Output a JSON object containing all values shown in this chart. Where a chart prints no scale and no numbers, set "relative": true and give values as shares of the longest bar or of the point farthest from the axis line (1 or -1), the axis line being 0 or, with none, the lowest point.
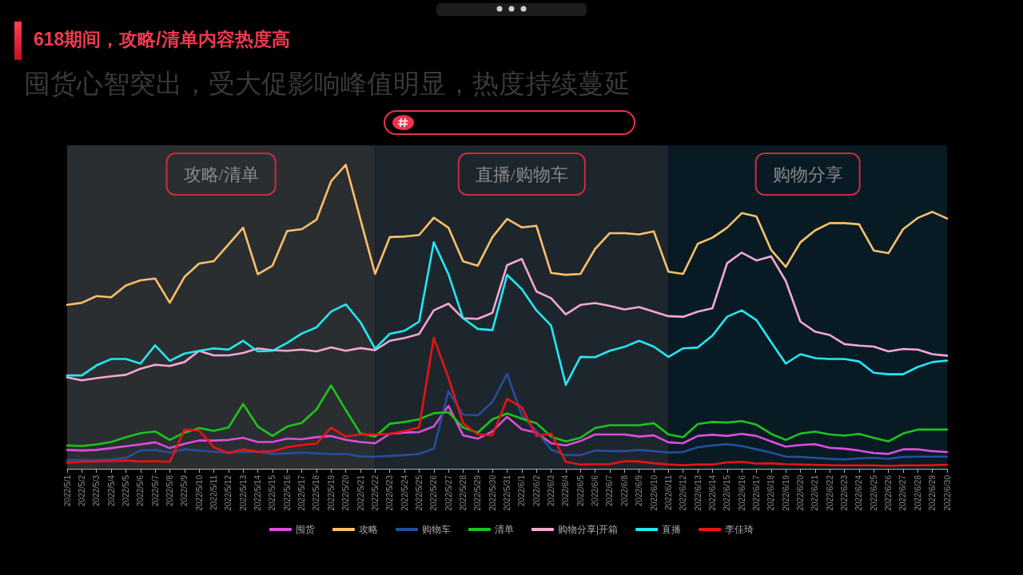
{
  "chart_data": {
    "type": "line",
    "title": "618期间，攻略/清单内容热度高",
    "subtitle": "囤货心智突出，受大促影响峰值明显，热度持续蔓延",
    "relative": true,
    "categories": [
      "2022/5/1",
      "2022/5/2",
      "2022/5/3",
      "2022/5/4",
      "2022/5/5",
      "2022/5/6",
      "2022/5/7",
      "2022/5/8",
      "2022/5/9",
      "2022/5/10",
      "2022/5/11",
      "2022/5/12",
      "2022/5/13",
      "2022/5/14",
      "2022/5/15",
      "2022/5/16",
      "2022/5/17",
      "2022/5/18",
      "2022/5/19",
      "2022/5/20",
      "2022/5/21",
      "2022/5/22",
      "2022/5/23",
      "2022/5/24",
      "2022/5/25",
      "2022/5/26",
      "2022/5/27",
      "2022/5/28",
      "2022/5/29",
      "2022/5/30",
      "2022/5/31",
      "2022/6/1",
      "2022/6/2",
      "2022/6/3",
      "2022/6/4",
      "2022/6/5",
      "2022/6/6",
      "2022/6/7",
      "2022/6/8",
      "2022/6/9",
      "2022/6/10",
      "2022/6/11",
      "2022/6/12",
      "2022/6/13",
      "2022/6/14",
      "2022/6/15",
      "2022/6/16",
      "2022/6/17",
      "2022/6/18",
      "2022/6/19",
      "2022/6/20",
      "2022/6/21",
      "2022/6/22",
      "2022/6/23",
      "2022/6/24",
      "2022/6/25",
      "2022/6/26",
      "2022/6/27",
      "2022/6/28",
      "2022/6/29",
      "2022/6/30"
    ],
    "series": [
      {
        "name": "囤货",
        "color": "#dc4edc",
        "values": [
          0.062,
          0.06,
          0.062,
          0.068,
          0.074,
          0.08,
          0.087,
          0.068,
          0.082,
          0.093,
          0.093,
          0.095,
          0.102,
          0.088,
          0.088,
          0.099,
          0.097,
          0.104,
          0.108,
          0.095,
          0.088,
          0.084,
          0.115,
          0.119,
          0.121,
          0.139,
          0.207,
          0.11,
          0.099,
          0.123,
          0.171,
          0.13,
          0.119,
          0.084,
          0.077,
          0.091,
          0.113,
          0.113,
          0.113,
          0.106,
          0.11,
          0.087,
          0.084,
          0.108,
          0.112,
          0.108,
          0.115,
          0.108,
          0.09,
          0.073,
          0.078,
          0.081,
          0.069,
          0.066,
          0.06,
          0.052,
          0.049,
          0.064,
          0.064,
          0.058,
          0.055
        ]
      },
      {
        "name": "攻略",
        "color": "#fdc06a",
        "values": [
          0.539,
          0.546,
          0.568,
          0.564,
          0.603,
          0.62,
          0.626,
          0.546,
          0.631,
          0.675,
          0.683,
          0.738,
          0.793,
          0.64,
          0.668,
          0.782,
          0.788,
          0.819,
          0.946,
          1,
          0.82,
          0.641,
          0.762,
          0.764,
          0.769,
          0.826,
          0.793,
          0.682,
          0.668,
          0.762,
          0.822,
          0.794,
          0.799,
          0.644,
          0.638,
          0.641,
          0.723,
          0.775,
          0.775,
          0.771,
          0.781,
          0.648,
          0.641,
          0.74,
          0.76,
          0.793,
          0.841,
          0.83,
          0.72,
          0.664,
          0.745,
          0.784,
          0.808,
          0.808,
          0.804,
          0.718,
          0.709,
          0.788,
          0.825,
          0.845,
          0.823
        ]
      },
      {
        "name": "购物车",
        "color": "#23509c",
        "values": [
          0.029,
          0.029,
          0.029,
          0.031,
          0.036,
          0.06,
          0.062,
          0.053,
          0.064,
          0.06,
          0.056,
          0.053,
          0.056,
          0.056,
          0.049,
          0.051,
          0.053,
          0.051,
          0.048,
          0.049,
          0.04,
          0.04,
          0.042,
          0.045,
          0.049,
          0.066,
          0.255,
          0.178,
          0.176,
          0.22,
          0.312,
          0.176,
          0.124,
          0.063,
          0.045,
          0.045,
          0.06,
          0.058,
          0.058,
          0.062,
          0.058,
          0.053,
          0.055,
          0.071,
          0.077,
          0.081,
          0.075,
          0.064,
          0.053,
          0.04,
          0.039,
          0.036,
          0.033,
          0.031,
          0.034,
          0.036,
          0.033,
          0.039,
          0.04,
          0.04,
          0.04
        ]
      },
      {
        "name": "清单",
        "color": "#1cc41c",
        "values": [
          0.077,
          0.075,
          0.08,
          0.088,
          0.104,
          0.117,
          0.123,
          0.095,
          0.119,
          0.134,
          0.125,
          0.136,
          0.213,
          0.139,
          0.108,
          0.139,
          0.151,
          0.195,
          0.274,
          0.193,
          0.116,
          0.106,
          0.148,
          0.154,
          0.163,
          0.183,
          0.186,
          0.136,
          0.119,
          0.163,
          0.182,
          0.165,
          0.15,
          0.106,
          0.09,
          0.102,
          0.134,
          0.143,
          0.143,
          0.143,
          0.15,
          0.113,
          0.104,
          0.147,
          0.154,
          0.152,
          0.157,
          0.145,
          0.115,
          0.095,
          0.116,
          0.122,
          0.113,
          0.109,
          0.115,
          0.102,
          0.09,
          0.116,
          0.129,
          0.129,
          0.129
        ]
      },
      {
        "name": "购物分享|开箱",
        "color": "#f6a8d2",
        "values": [
          0.301,
          0.291,
          0.298,
          0.304,
          0.309,
          0.329,
          0.342,
          0.338,
          0.351,
          0.388,
          0.373,
          0.373,
          0.381,
          0.396,
          0.39,
          0.388,
          0.392,
          0.386,
          0.399,
          0.388,
          0.397,
          0.39,
          0.421,
          0.43,
          0.443,
          0.521,
          0.543,
          0.495,
          0.493,
          0.513,
          0.67,
          0.69,
          0.583,
          0.561,
          0.508,
          0.539,
          0.545,
          0.536,
          0.524,
          0.532,
          0.517,
          0.502,
          0.5,
          0.517,
          0.528,
          0.676,
          0.711,
          0.685,
          0.699,
          0.618,
          0.484,
          0.451,
          0.44,
          0.41,
          0.405,
          0.402,
          0.386,
          0.394,
          0.392,
          0.377,
          0.372
        ]
      },
      {
        "name": "直播",
        "color": "#24e8f2",
        "values": [
          0.307,
          0.307,
          0.34,
          0.361,
          0.361,
          0.346,
          0.406,
          0.355,
          0.379,
          0.388,
          0.396,
          0.392,
          0.421,
          0.386,
          0.388,
          0.414,
          0.445,
          0.465,
          0.517,
          0.541,
          0.482,
          0.395,
          0.444,
          0.454,
          0.484,
          0.745,
          0.64,
          0.495,
          0.46,
          0.456,
          0.638,
          0.591,
          0.521,
          0.471,
          0.276,
          0.368,
          0.367,
          0.388,
          0.401,
          0.421,
          0.402,
          0.368,
          0.396,
          0.399,
          0.438,
          0.5,
          0.521,
          0.489,
          0.417,
          0.346,
          0.377,
          0.364,
          0.361,
          0.361,
          0.353,
          0.316,
          0.311,
          0.311,
          0.335,
          0.351,
          0.356
        ]
      },
      {
        "name": "李佳琦",
        "color": "#ec1212",
        "values": [
          0.02,
          0.023,
          0.024,
          0.025,
          0.027,
          0.024,
          0.025,
          0.023,
          0.128,
          0.126,
          0.071,
          0.052,
          0.064,
          0.056,
          0.058,
          0.071,
          0.078,
          0.083,
          0.135,
          0.106,
          0.113,
          0.113,
          0.115,
          0.124,
          0.136,
          0.431,
          0.299,
          0.15,
          0.113,
          0.11,
          0.23,
          0.202,
          0.108,
          0.116,
          0.023,
          0.014,
          0.015,
          0.015,
          0.025,
          0.024,
          0.018,
          0.014,
          0.012,
          0.014,
          0.014,
          0.021,
          0.023,
          0.017,
          0.018,
          0.015,
          0.014,
          0.013,
          0.012,
          0.011,
          0.011,
          0.011,
          0.01,
          0.011,
          0.011,
          0.012,
          0.013
        ]
      }
    ],
    "bands": [
      {
        "axis": "x",
        "from": "2022/5/1",
        "to": "2022/5/22",
        "label": "攻略/清单",
        "color": "#2b2e31"
      },
      {
        "axis": "x",
        "from": "2022/5/22",
        "to": "2022/6/11",
        "label": "直播/购物车",
        "color": "#1e262d"
      },
      {
        "axis": "x",
        "from": "2022/6/11",
        "to": "2022/6/30",
        "label": "购物分享",
        "color": "#081b25"
      }
    ],
    "legend": "bottom",
    "marker": "none",
    "line_style": "solid",
    "grid": false
  }
}
